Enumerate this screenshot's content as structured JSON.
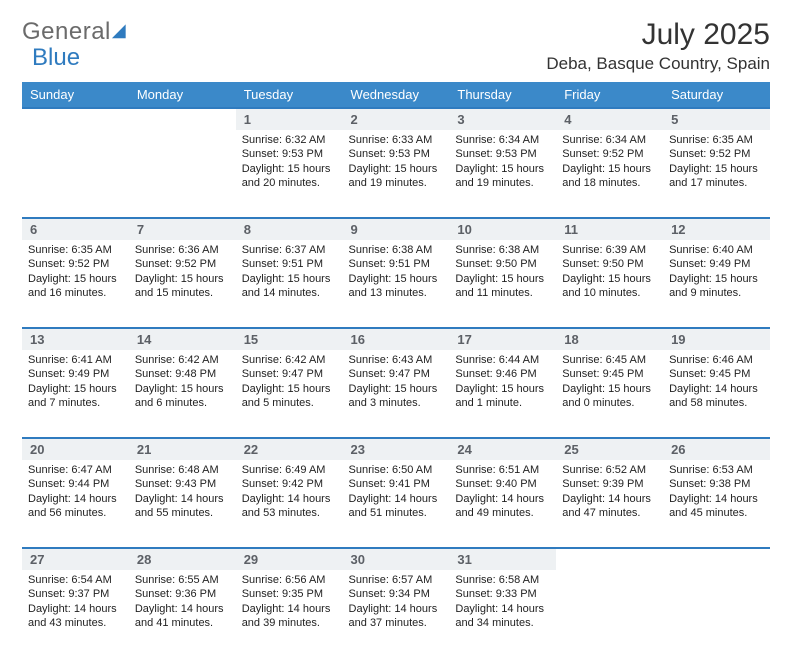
{
  "brand": {
    "part1": "General",
    "part2": "Blue"
  },
  "title": "July 2025",
  "location": "Deba, Basque Country, Spain",
  "colors": {
    "header_bg": "#3b89c9",
    "accent_border": "#2f7bbf",
    "daynum_bg": "#eef1f3",
    "text": "#1a1a1a",
    "logo_grey": "#6b6b6b"
  },
  "day_headers": [
    "Sunday",
    "Monday",
    "Tuesday",
    "Wednesday",
    "Thursday",
    "Friday",
    "Saturday"
  ],
  "weeks": [
    {
      "nums": [
        "",
        "",
        "1",
        "2",
        "3",
        "4",
        "5"
      ],
      "cells": [
        null,
        null,
        {
          "sunrise": "6:32 AM",
          "sunset": "9:53 PM",
          "daylight": "15 hours and 20 minutes."
        },
        {
          "sunrise": "6:33 AM",
          "sunset": "9:53 PM",
          "daylight": "15 hours and 19 minutes."
        },
        {
          "sunrise": "6:34 AM",
          "sunset": "9:53 PM",
          "daylight": "15 hours and 19 minutes."
        },
        {
          "sunrise": "6:34 AM",
          "sunset": "9:52 PM",
          "daylight": "15 hours and 18 minutes."
        },
        {
          "sunrise": "6:35 AM",
          "sunset": "9:52 PM",
          "daylight": "15 hours and 17 minutes."
        }
      ]
    },
    {
      "nums": [
        "6",
        "7",
        "8",
        "9",
        "10",
        "11",
        "12"
      ],
      "cells": [
        {
          "sunrise": "6:35 AM",
          "sunset": "9:52 PM",
          "daylight": "15 hours and 16 minutes."
        },
        {
          "sunrise": "6:36 AM",
          "sunset": "9:52 PM",
          "daylight": "15 hours and 15 minutes."
        },
        {
          "sunrise": "6:37 AM",
          "sunset": "9:51 PM",
          "daylight": "15 hours and 14 minutes."
        },
        {
          "sunrise": "6:38 AM",
          "sunset": "9:51 PM",
          "daylight": "15 hours and 13 minutes."
        },
        {
          "sunrise": "6:38 AM",
          "sunset": "9:50 PM",
          "daylight": "15 hours and 11 minutes."
        },
        {
          "sunrise": "6:39 AM",
          "sunset": "9:50 PM",
          "daylight": "15 hours and 10 minutes."
        },
        {
          "sunrise": "6:40 AM",
          "sunset": "9:49 PM",
          "daylight": "15 hours and 9 minutes."
        }
      ]
    },
    {
      "nums": [
        "13",
        "14",
        "15",
        "16",
        "17",
        "18",
        "19"
      ],
      "cells": [
        {
          "sunrise": "6:41 AM",
          "sunset": "9:49 PM",
          "daylight": "15 hours and 7 minutes."
        },
        {
          "sunrise": "6:42 AM",
          "sunset": "9:48 PM",
          "daylight": "15 hours and 6 minutes."
        },
        {
          "sunrise": "6:42 AM",
          "sunset": "9:47 PM",
          "daylight": "15 hours and 5 minutes."
        },
        {
          "sunrise": "6:43 AM",
          "sunset": "9:47 PM",
          "daylight": "15 hours and 3 minutes."
        },
        {
          "sunrise": "6:44 AM",
          "sunset": "9:46 PM",
          "daylight": "15 hours and 1 minute."
        },
        {
          "sunrise": "6:45 AM",
          "sunset": "9:45 PM",
          "daylight": "15 hours and 0 minutes."
        },
        {
          "sunrise": "6:46 AM",
          "sunset": "9:45 PM",
          "daylight": "14 hours and 58 minutes."
        }
      ]
    },
    {
      "nums": [
        "20",
        "21",
        "22",
        "23",
        "24",
        "25",
        "26"
      ],
      "cells": [
        {
          "sunrise": "6:47 AM",
          "sunset": "9:44 PM",
          "daylight": "14 hours and 56 minutes."
        },
        {
          "sunrise": "6:48 AM",
          "sunset": "9:43 PM",
          "daylight": "14 hours and 55 minutes."
        },
        {
          "sunrise": "6:49 AM",
          "sunset": "9:42 PM",
          "daylight": "14 hours and 53 minutes."
        },
        {
          "sunrise": "6:50 AM",
          "sunset": "9:41 PM",
          "daylight": "14 hours and 51 minutes."
        },
        {
          "sunrise": "6:51 AM",
          "sunset": "9:40 PM",
          "daylight": "14 hours and 49 minutes."
        },
        {
          "sunrise": "6:52 AM",
          "sunset": "9:39 PM",
          "daylight": "14 hours and 47 minutes."
        },
        {
          "sunrise": "6:53 AM",
          "sunset": "9:38 PM",
          "daylight": "14 hours and 45 minutes."
        }
      ]
    },
    {
      "nums": [
        "27",
        "28",
        "29",
        "30",
        "31",
        "",
        ""
      ],
      "cells": [
        {
          "sunrise": "6:54 AM",
          "sunset": "9:37 PM",
          "daylight": "14 hours and 43 minutes."
        },
        {
          "sunrise": "6:55 AM",
          "sunset": "9:36 PM",
          "daylight": "14 hours and 41 minutes."
        },
        {
          "sunrise": "6:56 AM",
          "sunset": "9:35 PM",
          "daylight": "14 hours and 39 minutes."
        },
        {
          "sunrise": "6:57 AM",
          "sunset": "9:34 PM",
          "daylight": "14 hours and 37 minutes."
        },
        {
          "sunrise": "6:58 AM",
          "sunset": "9:33 PM",
          "daylight": "14 hours and 34 minutes."
        },
        null,
        null
      ]
    }
  ],
  "labels": {
    "sunrise": "Sunrise:",
    "sunset": "Sunset:",
    "daylight": "Daylight:"
  }
}
